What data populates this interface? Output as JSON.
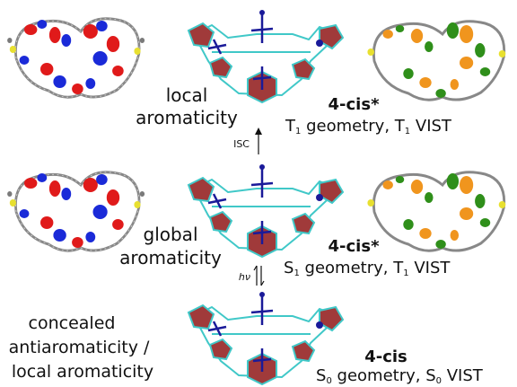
{
  "rows": [
    {
      "row": "top",
      "description": [
        "local",
        "aromaticity"
      ],
      "compound": "4-cis*",
      "state_label": {
        "p1": "T",
        "s1": "1",
        "p2": " geometry, T",
        "s2": "1",
        "p3": " VIST"
      }
    },
    {
      "row": "middle",
      "description": [
        "global",
        "aromaticity"
      ],
      "compound": "4-cis*",
      "state_label": {
        "p1": "S",
        "s1": "1",
        "p2": " geometry, T",
        "s2": "1",
        "p3": " VIST"
      }
    },
    {
      "row": "bottom",
      "description": [
        "concealed",
        "antiaromaticity /",
        "local aromaticity"
      ],
      "compound": "4-cis",
      "state_label": {
        "p1": "S",
        "s1": "0",
        "p2": " geometry, S",
        "s2": "0",
        "p3": " VIST"
      }
    }
  ],
  "arrows": {
    "upper": {
      "label": "ISC"
    },
    "lower": {
      "label": "hν"
    }
  },
  "colors": {
    "positive_lobe": "#e01a1a",
    "negative_lobe": "#1a2ad8",
    "alpha_lobe": "#f0951e",
    "beta_lobe": "#2f8f1a",
    "ring_fill": "#a03a3a",
    "bond": "#40c8c8",
    "vector": "#1a1a99",
    "carbon": "#7a7a7a",
    "sulfur": "#e8e030"
  },
  "icons": [
    "molecular-orbital-plot",
    "ring-current-vector-diagram",
    "spin-density-plot",
    "up-arrow-icon",
    "equilibrium-arrow-icon"
  ]
}
